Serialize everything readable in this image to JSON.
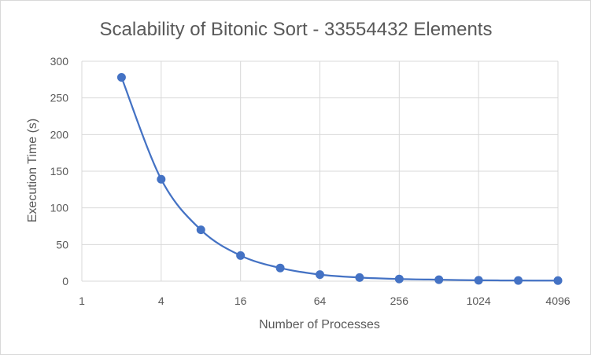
{
  "chart_data": {
    "type": "line",
    "title": "Scalability of Bitonic Sort - 33554432 Elements",
    "xlabel": "Number of Processes",
    "ylabel": "Execution Time (s)",
    "x_scale": "log2",
    "x_ticks": [
      "1",
      "4",
      "16",
      "64",
      "256",
      "1024",
      "4096"
    ],
    "x_range": [
      1,
      4096
    ],
    "y_ticks": [
      "0",
      "50",
      "100",
      "150",
      "200",
      "250",
      "300"
    ],
    "ylim": [
      0,
      300
    ],
    "grid": true,
    "legend": "none",
    "series_color": "#4472c4",
    "series": [
      {
        "x": [
          2,
          4,
          8,
          16,
          32,
          64,
          128,
          256,
          512,
          1024,
          2048,
          4096
        ],
        "values": [
          278,
          139,
          70,
          35,
          18,
          9,
          5,
          3,
          2,
          1.2,
          0.9,
          0.8
        ]
      }
    ]
  }
}
